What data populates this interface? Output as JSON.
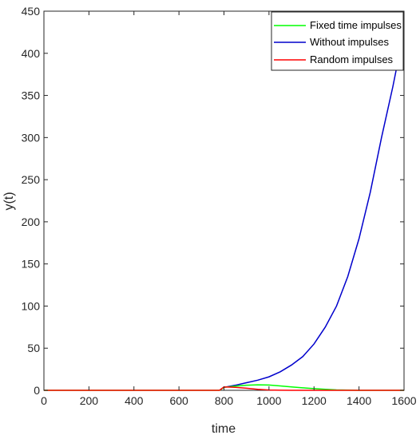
{
  "chart_data": {
    "type": "line",
    "xlabel": "time",
    "ylabel": "y(t)",
    "xlim": [
      0,
      1600
    ],
    "ylim": [
      0,
      450
    ],
    "xticks": [
      "0",
      "200",
      "400",
      "600",
      "800",
      "1000",
      "1200",
      "1400",
      "1600"
    ],
    "yticks": [
      "0",
      "50",
      "100",
      "150",
      "200",
      "250",
      "300",
      "350",
      "400",
      "450"
    ],
    "grid": false,
    "legend_position": "top-right",
    "series": [
      {
        "name": "Fixed time impulses",
        "color": "#00ff00",
        "x": [
          0,
          780,
          800,
          850,
          900,
          950,
          1000,
          1050,
          1100,
          1150,
          1200,
          1250,
          1300,
          1350,
          1400,
          1600
        ],
        "y": [
          0,
          0,
          3.5,
          5.0,
          6.0,
          6.5,
          6.3,
          5.2,
          4.0,
          3.0,
          2.0,
          1.2,
          0.5,
          0.2,
          0.0,
          0.0
        ]
      },
      {
        "name": "Without impulses",
        "color": "#0000cc",
        "x": [
          800,
          850,
          900,
          950,
          1000,
          1050,
          1100,
          1150,
          1200,
          1250,
          1300,
          1350,
          1400,
          1450,
          1500,
          1550,
          1580
        ],
        "y": [
          3.5,
          6,
          9,
          12,
          16,
          22,
          30,
          40,
          55,
          75,
          100,
          135,
          180,
          235,
          300,
          360,
          400
        ]
      },
      {
        "name": "Random impulses",
        "color": "#ff0000",
        "x": [
          0,
          780,
          800,
          850,
          900,
          950,
          1000,
          1050,
          1100,
          1600
        ],
        "y": [
          0,
          0,
          4.0,
          3.5,
          2.5,
          1.2,
          0.4,
          0.1,
          0.0,
          0.0
        ]
      }
    ]
  }
}
